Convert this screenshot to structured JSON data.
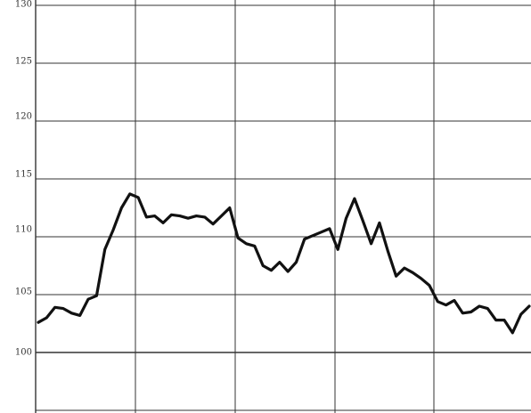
{
  "chart_data": {
    "type": "line",
    "title": "",
    "xlabel": "",
    "ylabel": "",
    "ylim": [
      95,
      130
    ],
    "y_ticks": [
      "130",
      "125",
      "120",
      "115",
      "110",
      "105",
      "100"
    ],
    "grid": true,
    "legend": "none",
    "line_color": "#111111",
    "grid_color": "#333333",
    "series": [
      {
        "values": [
          102.6,
          103.0,
          103.9,
          103.8,
          103.4,
          103.2,
          104.6,
          104.9,
          108.9,
          110.6,
          112.5,
          113.7,
          113.4,
          111.7,
          111.8,
          111.2,
          111.9,
          111.8,
          111.6,
          111.8,
          111.7,
          111.1,
          111.8,
          112.5,
          109.9,
          109.4,
          109.2,
          107.5,
          107.1,
          107.8,
          107.0,
          107.8,
          109.8,
          110.1,
          110.4,
          110.7,
          108.9,
          111.6,
          113.3,
          111.4,
          109.4,
          111.2,
          108.8,
          106.6,
          107.3,
          106.9,
          106.4,
          105.8,
          104.4,
          104.1,
          104.5,
          103.4,
          103.5,
          104.0,
          103.8,
          102.8,
          102.8,
          101.7,
          103.3,
          104.0
        ]
      }
    ]
  }
}
